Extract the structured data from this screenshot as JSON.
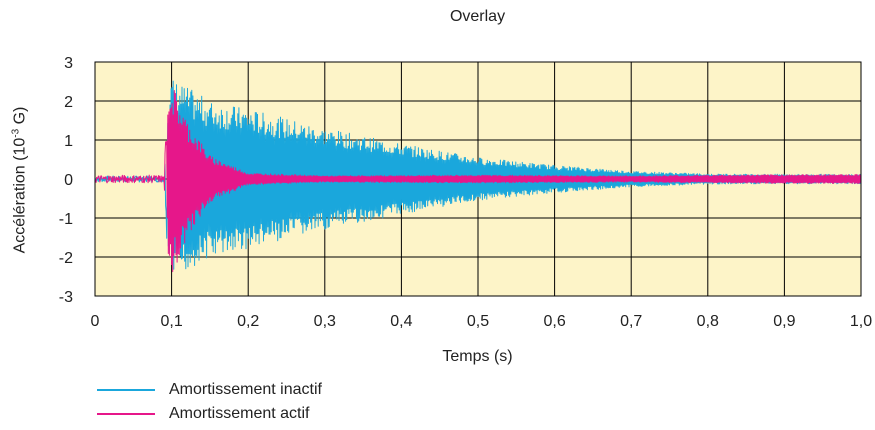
{
  "chart_data": {
    "type": "line",
    "title": "Overlay",
    "xlabel": "Temps (s)",
    "ylabel_text": "Accélération (10",
    "ylabel_sup": "-3",
    "ylabel_unit": " G)",
    "xlim": [
      0,
      1.0
    ],
    "ylim": [
      -3,
      3
    ],
    "xticks": [
      "0",
      "0,1",
      "0,2",
      "0,3",
      "0,4",
      "0,5",
      "0,6",
      "0,7",
      "0,8",
      "0,9",
      "1,0"
    ],
    "yticks": [
      "3",
      "2",
      "1",
      "0",
      "-1",
      "-2",
      "-3"
    ],
    "grid": true,
    "legend_position": "bottom-left",
    "plot_background": "#fdf4c8",
    "series": [
      {
        "name": "Amortissement inactif",
        "color": "#1aa7dc",
        "envelope": {
          "x": [
            0,
            0.09,
            0.095,
            0.1,
            0.15,
            0.2,
            0.3,
            0.4,
            0.5,
            0.6,
            0.7,
            0.8,
            0.9,
            1.0
          ],
          "y": [
            0.08,
            0.08,
            2.1,
            2.6,
            2.0,
            1.8,
            1.3,
            0.9,
            0.55,
            0.35,
            0.2,
            0.13,
            0.12,
            0.12
          ]
        }
      },
      {
        "name": "Amortissement actif",
        "color": "#e6178a",
        "envelope": {
          "x": [
            0,
            0.09,
            0.095,
            0.1,
            0.12,
            0.15,
            0.2,
            0.3,
            0.5,
            0.7,
            0.8,
            1.0
          ],
          "y": [
            0.1,
            0.1,
            2.4,
            2.5,
            1.5,
            0.6,
            0.15,
            0.08,
            0.1,
            0.08,
            0.1,
            0.12
          ]
        }
      }
    ]
  }
}
